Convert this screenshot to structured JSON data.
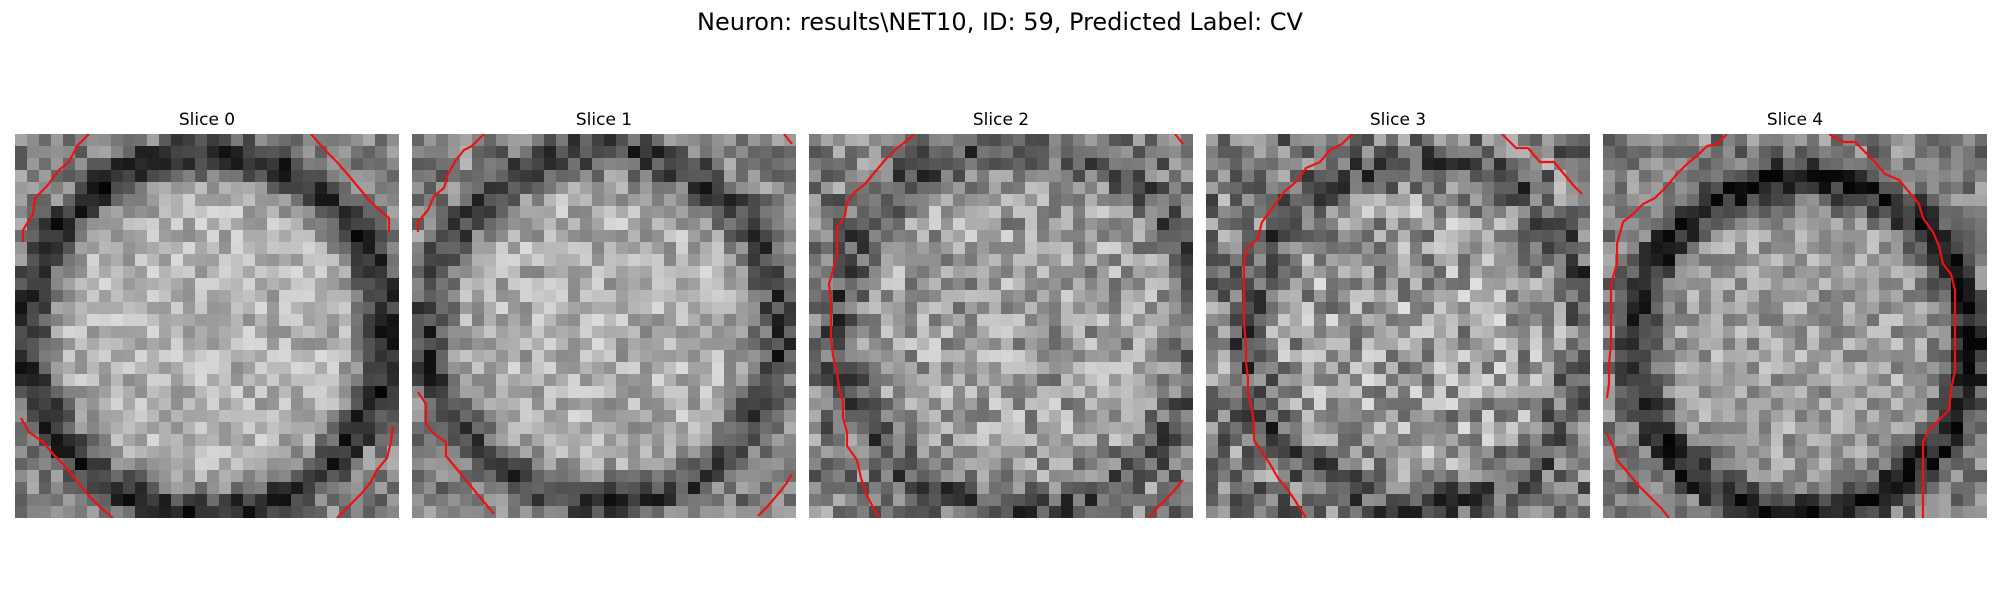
{
  "figure": {
    "title": "Neuron: results\\NET10, ID: 59, Predicted Label: CV",
    "panels": [
      {
        "title": "Slice 0"
      },
      {
        "title": "Slice 1"
      },
      {
        "title": "Slice 2"
      },
      {
        "title": "Slice 3"
      },
      {
        "title": "Slice 4"
      }
    ]
  },
  "colors": {
    "contour": "#ee1111",
    "background": "#ffffff",
    "colormap": "gray"
  }
}
